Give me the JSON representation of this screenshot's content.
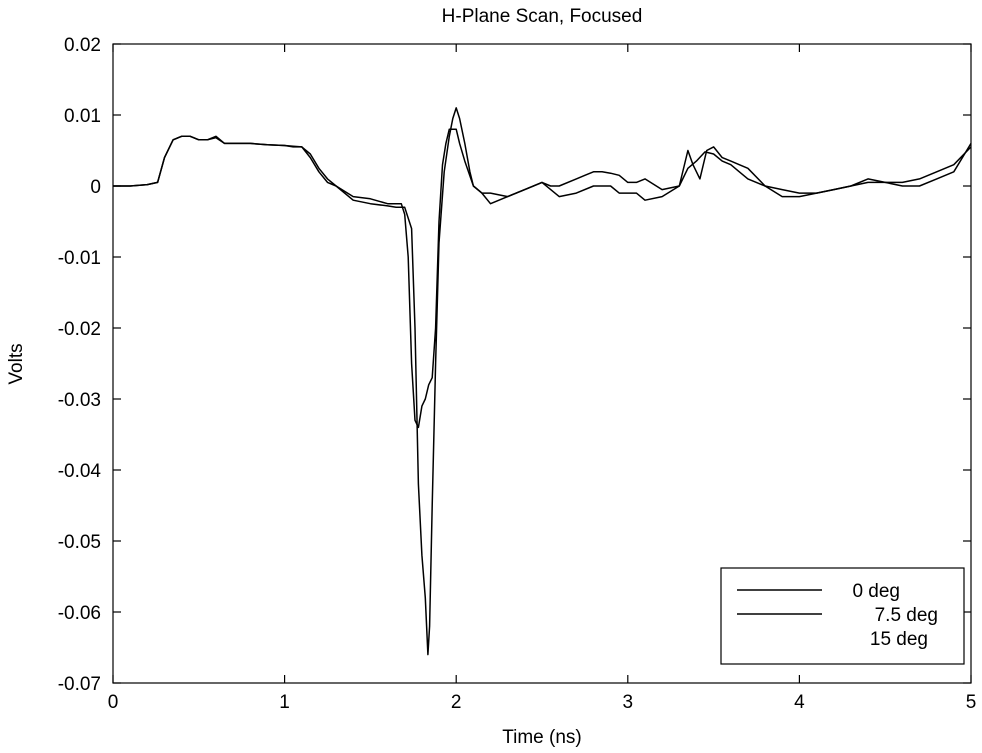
{
  "chart_data": {
    "type": "line",
    "title": "H-Plane Scan, Focused",
    "xlabel": "Time (ns)",
    "ylabel": "Volts",
    "xlim": [
      0,
      5
    ],
    "ylim": [
      -0.07,
      0.02
    ],
    "xticks": [
      0,
      1,
      2,
      3,
      4,
      5
    ],
    "xtick_labels": [
      "0",
      "1",
      "2",
      "3",
      "4",
      "5"
    ],
    "yticks": [
      -0.07,
      -0.06,
      -0.05,
      -0.04,
      -0.03,
      -0.02,
      -0.01,
      0,
      0.01,
      0.02
    ],
    "ytick_labels": [
      "-0.07",
      "-0.06",
      "-0.05",
      "-0.04",
      "-0.03",
      "-0.02",
      "-0.01",
      "0",
      "0.01",
      "0.02"
    ],
    "grid": false,
    "legend_position": "bottom-right",
    "series": [
      {
        "name": "0 deg",
        "color": "#000000",
        "x": [
          0,
          0.1,
          0.2,
          0.26,
          0.3,
          0.35,
          0.4,
          0.45,
          0.5,
          0.55,
          0.6,
          0.65,
          0.7,
          0.8,
          0.9,
          1.0,
          1.05,
          1.1,
          1.15,
          1.2,
          1.25,
          1.3,
          1.4,
          1.5,
          1.6,
          1.65,
          1.68,
          1.7,
          1.72,
          1.74,
          1.76,
          1.78,
          1.8,
          1.82,
          1.84,
          1.86,
          1.88,
          1.9,
          1.92,
          1.94,
          1.96,
          1.98,
          2.0,
          2.02,
          2.05,
          2.1,
          2.15,
          2.2,
          2.3,
          2.4,
          2.5,
          2.55,
          2.6,
          2.7,
          2.75,
          2.8,
          2.85,
          2.9,
          2.95,
          3.0,
          3.05,
          3.1,
          3.2,
          3.3,
          3.35,
          3.4,
          3.45,
          3.5,
          3.55,
          3.6,
          3.65,
          3.7,
          3.8,
          3.9,
          4.0,
          4.1,
          4.2,
          4.3,
          4.4,
          4.5,
          4.6,
          4.7,
          4.8,
          4.9,
          5.0
        ],
        "y": [
          0.0,
          0.0,
          0.0002,
          0.0005,
          0.004,
          0.0065,
          0.007,
          0.007,
          0.0065,
          0.0065,
          0.007,
          0.006,
          0.006,
          0.006,
          0.0058,
          0.0057,
          0.0055,
          0.0055,
          0.004,
          0.002,
          0.0005,
          0.0,
          -0.0015,
          -0.0018,
          -0.0025,
          -0.0025,
          -0.0025,
          -0.004,
          -0.01,
          -0.025,
          -0.033,
          -0.034,
          -0.031,
          -0.03,
          -0.028,
          -0.027,
          -0.02,
          -0.005,
          0.003,
          0.006,
          0.008,
          0.008,
          0.008,
          0.006,
          0.0035,
          0.0,
          -0.001,
          -0.001,
          -0.0015,
          -0.0005,
          0.0005,
          0.0,
          0.0,
          0.001,
          0.0015,
          0.002,
          0.002,
          0.0018,
          0.0015,
          0.0005,
          0.0005,
          0.001,
          -0.0005,
          0.0,
          0.0025,
          0.0035,
          0.0048,
          0.0045,
          0.0035,
          0.003,
          0.002,
          0.001,
          0.0,
          -0.0005,
          -0.001,
          -0.001,
          -0.0005,
          0.0,
          0.0005,
          0.0005,
          0.0005,
          0.001,
          0.002,
          0.003,
          0.0055
        ]
      },
      {
        "name": "7.5 deg",
        "color": "#000000",
        "x": [
          0,
          0.1,
          0.2,
          0.26,
          0.3,
          0.35,
          0.4,
          0.45,
          0.5,
          0.55,
          0.6,
          0.65,
          0.7,
          0.8,
          0.9,
          1.0,
          1.05,
          1.1,
          1.15,
          1.2,
          1.25,
          1.3,
          1.4,
          1.5,
          1.6,
          1.65,
          1.7,
          1.74,
          1.76,
          1.78,
          1.8,
          1.82,
          1.835,
          1.845,
          1.86,
          1.88,
          1.9,
          1.93,
          1.96,
          1.98,
          2.0,
          2.02,
          2.05,
          2.08,
          2.1,
          2.15,
          2.2,
          2.3,
          2.4,
          2.5,
          2.6,
          2.7,
          2.8,
          2.85,
          2.9,
          2.95,
          3.0,
          3.05,
          3.1,
          3.2,
          3.3,
          3.35,
          3.38,
          3.42,
          3.46,
          3.5,
          3.55,
          3.6,
          3.65,
          3.7,
          3.8,
          3.9,
          4.0,
          4.1,
          4.2,
          4.3,
          4.4,
          4.5,
          4.6,
          4.7,
          4.8,
          4.9,
          5.0
        ],
        "y": [
          0.0,
          0.0,
          0.0002,
          0.0005,
          0.004,
          0.0065,
          0.007,
          0.007,
          0.0065,
          0.0065,
          0.0068,
          0.006,
          0.006,
          0.006,
          0.0058,
          0.0057,
          0.0056,
          0.0055,
          0.0045,
          0.0025,
          0.001,
          0.0,
          -0.002,
          -0.0025,
          -0.0028,
          -0.003,
          -0.003,
          -0.006,
          -0.02,
          -0.042,
          -0.052,
          -0.058,
          -0.066,
          -0.062,
          -0.045,
          -0.025,
          -0.008,
          0.002,
          0.007,
          0.0095,
          0.011,
          0.0095,
          0.006,
          0.002,
          0.0,
          -0.001,
          -0.0025,
          -0.0015,
          -0.0005,
          0.0005,
          -0.0015,
          -0.001,
          0.0,
          0.0,
          0.0,
          -0.001,
          -0.001,
          -0.001,
          -0.002,
          -0.0015,
          0.0,
          0.005,
          0.003,
          0.001,
          0.005,
          0.0055,
          0.004,
          0.0035,
          0.003,
          0.0025,
          0.0,
          -0.0015,
          -0.0015,
          -0.001,
          -0.0005,
          0.0,
          0.001,
          0.0005,
          0.0,
          0.0,
          0.001,
          0.002,
          0.006
        ]
      },
      {
        "name": "15 deg",
        "color": "#ffffff",
        "x": [],
        "y": []
      }
    ]
  }
}
